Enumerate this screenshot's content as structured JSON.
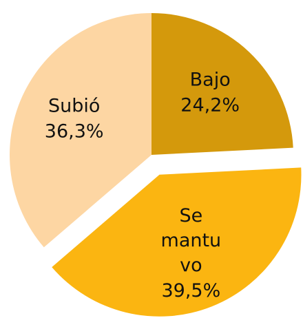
{
  "chart_data": {
    "type": "pie",
    "categories": [
      "Bajo",
      "Se mantuvo",
      "Subió"
    ],
    "values": [
      24.2,
      39.5,
      36.3
    ],
    "value_labels": [
      "24,2%",
      "39,5%",
      "36,3%"
    ],
    "colors": [
      "#d4990c",
      "#fbb511",
      "#fdd6a3"
    ],
    "exploded": [
      false,
      true,
      false
    ]
  }
}
